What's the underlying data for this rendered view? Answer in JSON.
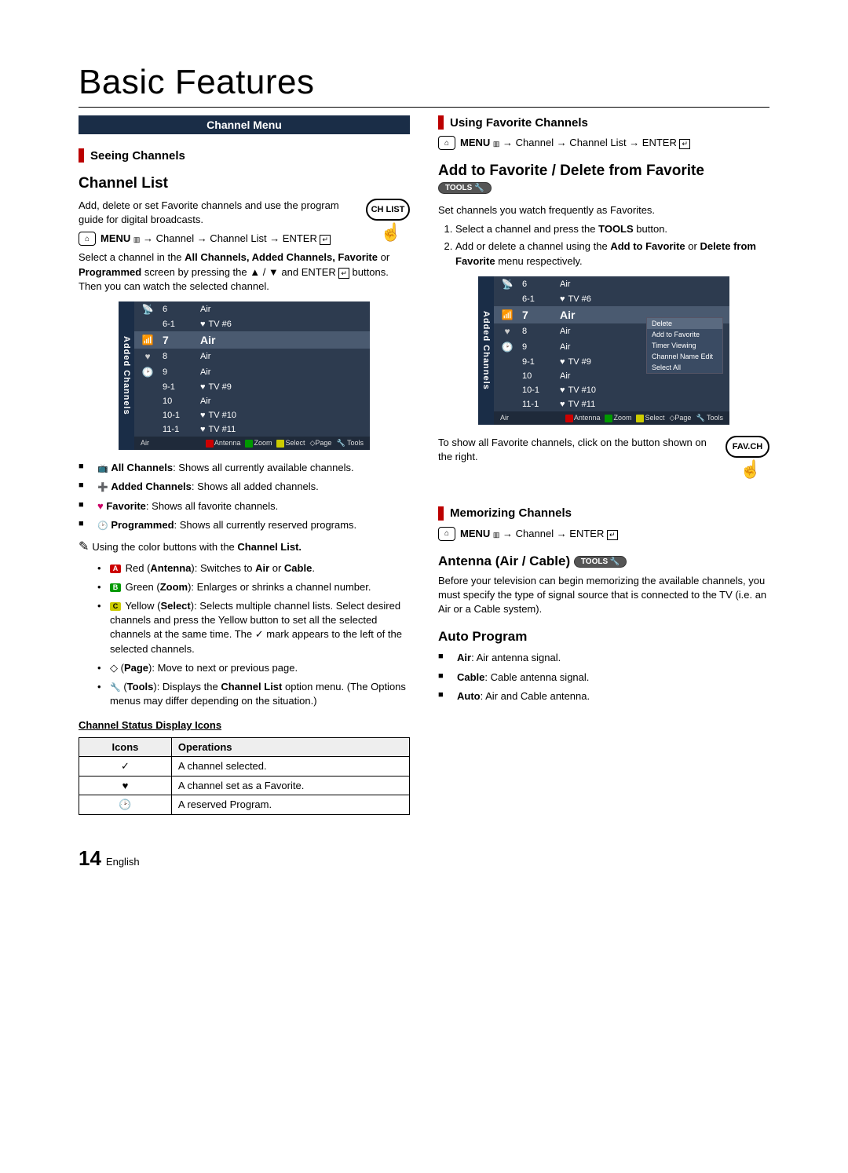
{
  "page": {
    "title": "Basic Features",
    "pageNum": "14",
    "lang": "English"
  },
  "banner": {
    "channelMenu": "Channel Menu"
  },
  "left": {
    "seeing": "Seeing Channels",
    "chList": "Channel List",
    "chListDesc": "Add, delete or set Favorite channels and use the program guide for digital broadcasts.",
    "remoteBtn1": "CH LIST",
    "navPath": "→ Channel → Channel List → ENTER",
    "navPrefix": "MENU",
    "selectDesc1": "Select a channel in the ",
    "selectBold": "All Channels, Added Channels, Favorite",
    "selectDesc2": " or ",
    "selectBold2": "Programmed",
    "selectDesc3": " screen by pressing the ▲ / ▼ and ENTER",
    "selectDesc4": " buttons. Then you can watch the selected channel.",
    "bullets": {
      "b1a": "All Channels",
      "b1b": ": Shows all currently available channels.",
      "b2a": "Added Channels",
      "b2b": ": Shows all added channels.",
      "b3a": "Favorite",
      "b3b": ": Shows all favorite channels.",
      "b4a": "Programmed",
      "b4b": ": Shows all currently reserved programs."
    },
    "noteLine": "Using the color buttons with the ",
    "noteBold": "Channel List.",
    "colors": {
      "red1": "Red (",
      "red2": "Antenna",
      "red3": "): Switches to ",
      "red4": "Air",
      "red5": " or ",
      "red6": "Cable",
      "red7": ".",
      "grn1": "Green (",
      "grn2": "Zoom",
      "grn3": "): Enlarges or shrinks a channel number.",
      "yel1": "Yellow (",
      "yel2": "Select",
      "yel3": "): Selects multiple channel lists. Select desired channels and press the Yellow button to set all the selected channels at the same time. The ✓ mark appears to the left of the selected channels.",
      "page1": "(",
      "page2": "Page",
      "page3": "): Move to next or previous page.",
      "tools1": "(",
      "tools2": "Tools",
      "tools3": "): Displays the ",
      "tools4": "Channel List",
      "tools5": " option menu. (The Options menus may differ depending on the situation.)"
    },
    "tableTitle": "Channel Status Display Icons",
    "th1": "Icons",
    "th2": "Operations",
    "r1": "A channel selected.",
    "r2": "A channel set as a Favorite.",
    "r3": "A reserved Program."
  },
  "right": {
    "usingFav": "Using Favorite Channels",
    "navPath2": "→ Channel → Channel List → ENTER",
    "addDel": "Add to Favorite / Delete from Favorite",
    "toolsBadge": "TOOLS",
    "setFav": "Set channels you watch frequently as Favorites.",
    "step1a": "Select a channel and press the ",
    "step1b": "TOOLS",
    "step1c": " button.",
    "step2a": "Add or delete a channel using the ",
    "step2b": "Add to Favorite",
    "step2c": " or ",
    "step2d": "Delete from Favorite",
    "step2e": " menu respectively.",
    "popup": {
      "p1": "Delete",
      "p2": "Add to Favorite",
      "p3": "Timer Viewing",
      "p4": "Channel Name Edit",
      "p5": "Select All"
    },
    "showFav": "To show all Favorite channels, click on the button shown on the right.",
    "remoteBtn2": "FAV.CH",
    "memorizing": "Memorizing Channels",
    "navPath3": "→ Channel → ENTER",
    "antenna": "Antenna (Air / Cable)",
    "antennaDesc": "Before your television can begin memorizing the available channels, you must specify the type of signal source that is connected to the TV (i.e. an Air or a Cable system).",
    "autoProg": "Auto Program",
    "air1": "Air",
    "air2": ": Air antenna signal.",
    "cab1": "Cable",
    "cab2": ": Cable antenna signal.",
    "auto1": "Auto",
    "auto2": ": Air and Cable antenna."
  },
  "chbox": {
    "sideLabel": "Added Channels",
    "rows": [
      {
        "n": "6",
        "t": "Air",
        "ic": ""
      },
      {
        "n": "6-1",
        "t": "TV #6",
        "ic": "",
        "heart": true
      },
      {
        "n": "7",
        "t": "Air",
        "ic": "",
        "sel": true
      },
      {
        "n": "8",
        "t": "Air",
        "ic": ""
      },
      {
        "n": "9",
        "t": "Air",
        "ic": ""
      },
      {
        "n": "9-1",
        "t": "TV #9",
        "ic": "",
        "heart": true
      },
      {
        "n": "10",
        "t": "Air",
        "ic": ""
      },
      {
        "n": "10-1",
        "t": "TV #10",
        "ic": "",
        "heart": true
      },
      {
        "n": "11-1",
        "t": "TV #11",
        "ic": "",
        "heart": true
      }
    ],
    "foot": {
      "src": "Air",
      "a": "Antenna",
      "b": "Zoom",
      "c": "Select",
      "d": "Page",
      "e": "Tools"
    }
  }
}
